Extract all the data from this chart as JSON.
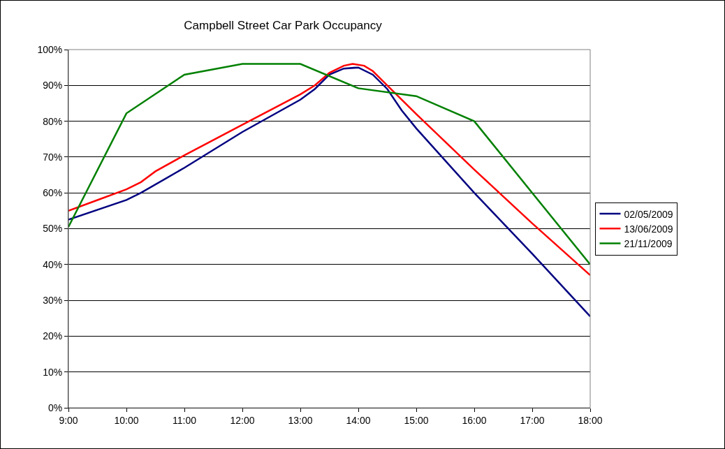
{
  "chart_data": {
    "type": "line",
    "title": "Campbell Street Car Park Occupancy",
    "xlim": [
      9,
      18
    ],
    "xticks": [
      {
        "value": 9,
        "label": "9:00"
      },
      {
        "value": 10,
        "label": "10:00"
      },
      {
        "value": 11,
        "label": "11:00"
      },
      {
        "value": 12,
        "label": "12:00"
      },
      {
        "value": 13,
        "label": "13:00"
      },
      {
        "value": 14,
        "label": "14:00"
      },
      {
        "value": 15,
        "label": "15:00"
      },
      {
        "value": 16,
        "label": "16:00"
      },
      {
        "value": 17,
        "label": "17:00"
      },
      {
        "value": 18,
        "label": "18:00"
      }
    ],
    "ylim": [
      0,
      100
    ],
    "yticks": [
      {
        "value": 0,
        "label": "0%"
      },
      {
        "value": 10,
        "label": "10%"
      },
      {
        "value": 20,
        "label": "20%"
      },
      {
        "value": 30,
        "label": "30%"
      },
      {
        "value": 40,
        "label": "40%"
      },
      {
        "value": 50,
        "label": "50%"
      },
      {
        "value": 60,
        "label": "60%"
      },
      {
        "value": 70,
        "label": "70%"
      },
      {
        "value": 80,
        "label": "80%"
      },
      {
        "value": 90,
        "label": "90%"
      },
      {
        "value": 100,
        "label": "100%"
      }
    ],
    "grid": "y",
    "legend": "right",
    "marker": "none",
    "line_style": "solid",
    "series": [
      {
        "name": "02/05/2009",
        "color": "#000080",
        "x": [
          9,
          10,
          10.25,
          11,
          12,
          13,
          13.25,
          13.5,
          13.75,
          14,
          14.25,
          14.5,
          14.75,
          15,
          16,
          17,
          18
        ],
        "values": [
          52.5,
          58,
          60,
          67,
          77,
          86,
          89,
          93,
          94.7,
          95,
          93,
          89,
          83,
          78,
          60,
          43,
          25.5
        ]
      },
      {
        "name": "13/06/2009",
        "color": "#ff0000",
        "x": [
          9,
          9.5,
          10,
          10.25,
          10.5,
          11,
          12,
          13,
          13.25,
          13.5,
          13.75,
          13.9,
          14.1,
          14.25,
          14.5,
          14.75,
          15,
          16,
          17,
          18
        ],
        "values": [
          55,
          58,
          61,
          63,
          66,
          70.5,
          79,
          87.5,
          90,
          93.5,
          95.5,
          96,
          95.5,
          94,
          90,
          86,
          82,
          66.5,
          51.5,
          37
        ]
      },
      {
        "name": "21/11/2009",
        "color": "#008000",
        "x": [
          9,
          10,
          11,
          12,
          13,
          14,
          15,
          16,
          18
        ],
        "values": [
          50.5,
          82.2,
          93,
          96,
          96,
          89.2,
          87,
          80,
          40
        ]
      }
    ]
  }
}
